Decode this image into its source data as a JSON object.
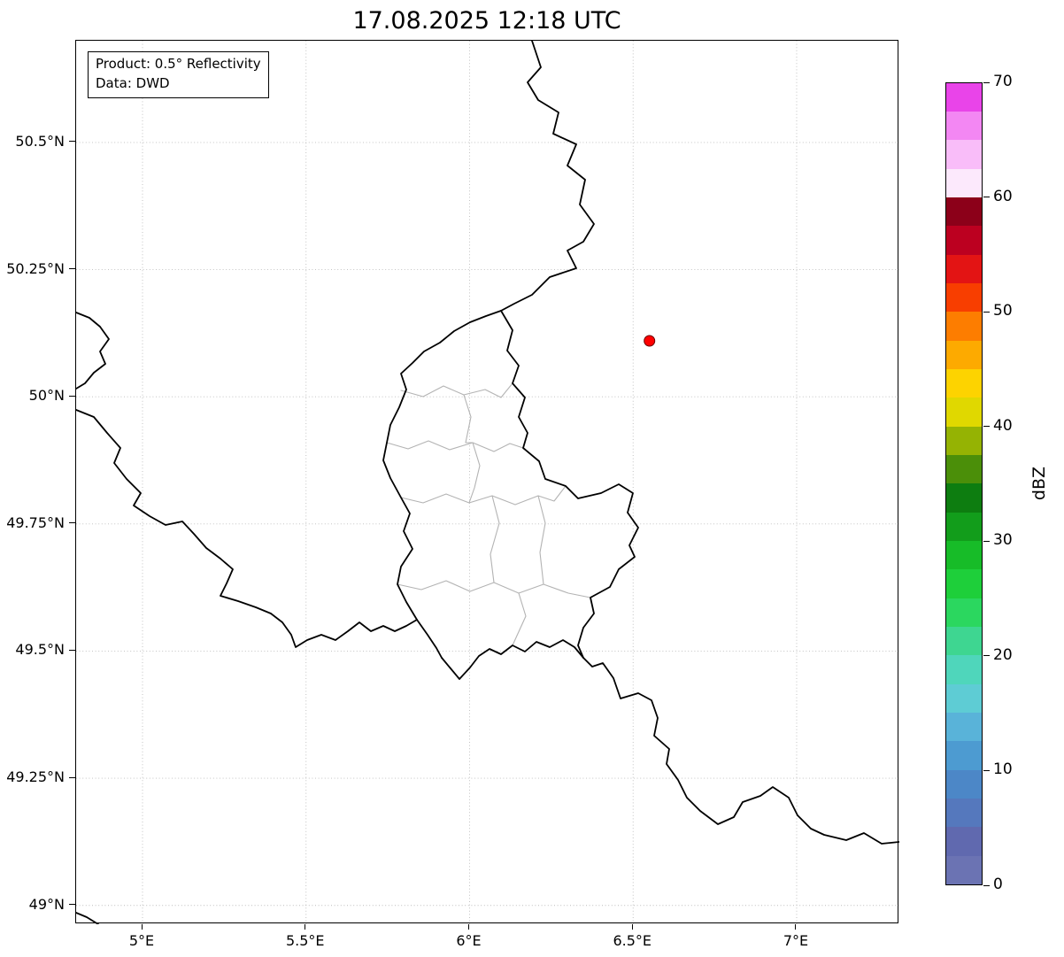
{
  "title": "17.08.2025 12:18 UTC",
  "info_box": {
    "product": "Product: 0.5° Reflectivity",
    "data_source": "Data: DWD"
  },
  "axes": {
    "lon_range": [
      4.797,
      7.314
    ],
    "lat_range": [
      48.963,
      50.7
    ],
    "x_ticks": [
      {
        "value": 5.0,
        "label": "5°E"
      },
      {
        "value": 5.5,
        "label": "5.5°E"
      },
      {
        "value": 6.0,
        "label": "6°E"
      },
      {
        "value": 6.5,
        "label": "6.5°E"
      },
      {
        "value": 7.0,
        "label": "7°E"
      }
    ],
    "y_ticks": [
      {
        "value": 50.5,
        "label": "50.5°N"
      },
      {
        "value": 50.25,
        "label": "50.25°N"
      },
      {
        "value": 50.0,
        "label": "50°N"
      },
      {
        "value": 49.75,
        "label": "49.75°N"
      },
      {
        "value": 49.5,
        "label": "49.5°N"
      },
      {
        "value": 49.25,
        "label": "49.25°N"
      },
      {
        "value": 49.0,
        "label": "49°N"
      }
    ]
  },
  "marker": {
    "name": "radar-location",
    "lon": 6.55,
    "lat": 50.11,
    "color": "#ff0000",
    "edge_color": "#6b0000"
  },
  "colorbar": {
    "label": "dBZ",
    "min": 0,
    "max": 70,
    "ticks": [
      0,
      10,
      20,
      30,
      40,
      50,
      60,
      70
    ],
    "segment_colors_bottom_to_top": [
      "#6b73b3",
      "#6069af",
      "#5578bd",
      "#4c87c7",
      "#4d9bd1",
      "#59b3d9",
      "#5eccd4",
      "#4fd6bb",
      "#3ed691",
      "#2bd75f",
      "#1ecf3a",
      "#17bc28",
      "#129d1b",
      "#0d7d10",
      "#4b8f09",
      "#95b303",
      "#e0d800",
      "#fdd300",
      "#fdaa00",
      "#fd7d00",
      "#f83e00",
      "#e31414",
      "#bc0020",
      "#8c0019",
      "#fce9fc",
      "#f9bdf9",
      "#f387f3",
      "#e944e9"
    ]
  }
}
